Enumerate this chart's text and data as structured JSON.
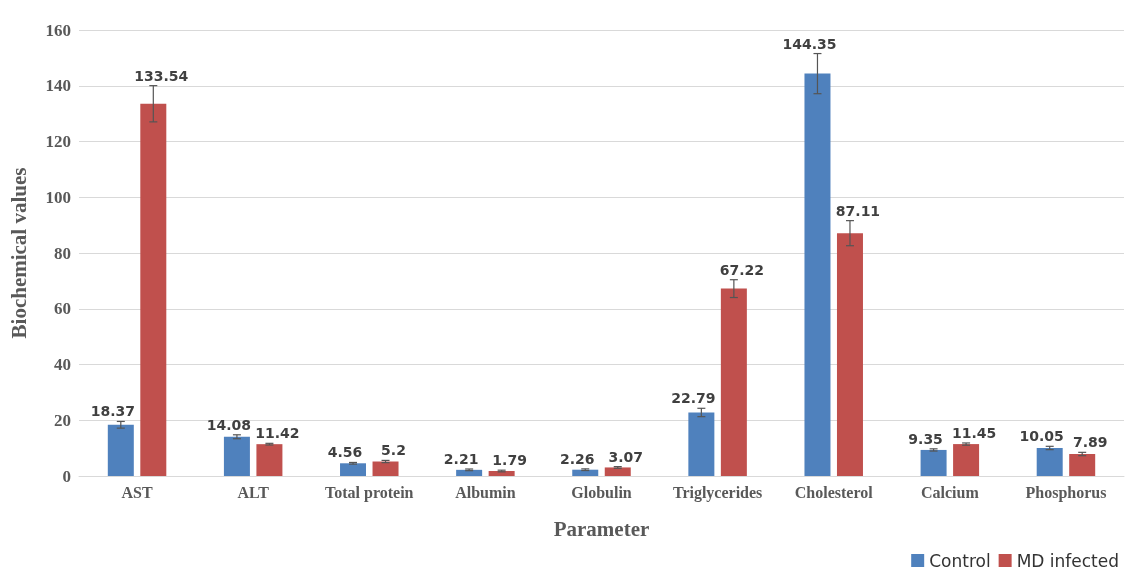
{
  "chart_data": {
    "type": "bar",
    "xlabel": "Parameter",
    "ylabel": "Biochemical values",
    "categories": [
      "AST",
      "ALT",
      "Total protein",
      "Albumin",
      "Globulin",
      "Triglycerides",
      "Cholesterol",
      "Calcium",
      "Phosphorus"
    ],
    "series": [
      {
        "name": "Control",
        "color": "#4f81bd",
        "values": [
          18.37,
          14.08,
          4.56,
          2.21,
          2.26,
          22.79,
          144.35,
          9.35,
          10.05
        ],
        "errors": [
          1.2,
          0.7,
          0.3,
          0.3,
          0.3,
          1.5,
          7.2,
          0.4,
          0.6
        ]
      },
      {
        "name": "MD infected",
        "color": "#c0504d",
        "values": [
          133.54,
          11.42,
          5.2,
          1.79,
          3.07,
          67.22,
          87.11,
          11.45,
          7.89
        ],
        "errors": [
          6.5,
          0.3,
          0.4,
          0.3,
          0.3,
          3.2,
          4.5,
          0.4,
          0.6
        ]
      }
    ],
    "ylim": [
      0,
      160
    ],
    "yticks": [
      0,
      20,
      40,
      60,
      80,
      100,
      120,
      140,
      160
    ],
    "grid": "y",
    "legend": "bottom right",
    "data_labels": true
  }
}
